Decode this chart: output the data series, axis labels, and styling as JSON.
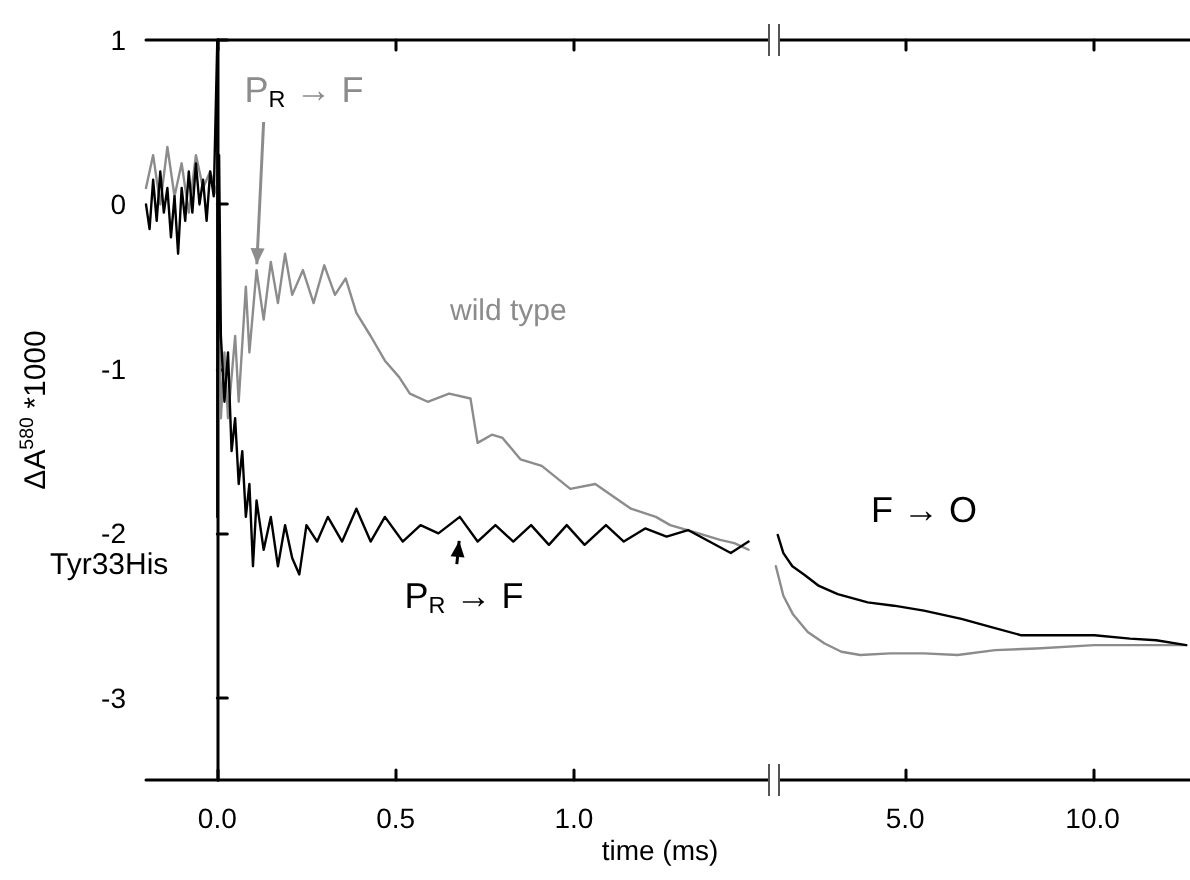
{
  "chart_data": [
    {
      "type": "line",
      "xlabel": "time (ms)",
      "ylabel": "ΔA$^{580}$ *1000",
      "xlim": [
        -0.2,
        1.55
      ],
      "xticks": [
        {
          "value": 0,
          "label": "0.0"
        },
        {
          "value": 0.5,
          "label": "0.5"
        },
        {
          "value": 1,
          "label": "1.0"
        }
      ],
      "ylim": [
        -3.5,
        1
      ],
      "yticks": [
        -3,
        -2,
        -1,
        0,
        1
      ],
      "series": [
        {
          "name": "wild type",
          "color": "#8c8c8c",
          "x": [
            -0.2,
            -0.18,
            -0.16,
            -0.14,
            -0.12,
            -0.1,
            -0.08,
            -0.06,
            -0.04,
            -0.02,
            0,
            0.01,
            0.02,
            0.03,
            0.05,
            0.06,
            0.08,
            0.09,
            0.11,
            0.13,
            0.15,
            0.17,
            0.19,
            0.21,
            0.24,
            0.27,
            0.3,
            0.33,
            0.36,
            0.39,
            0.43,
            0.47,
            0.51,
            0.54,
            0.59,
            0.65,
            0.71,
            0.73,
            0.77,
            0.8,
            0.85,
            0.91,
            0.99,
            1.06,
            1.16,
            1.23,
            1.27,
            1.35,
            1.41,
            1.45,
            1.49
          ],
          "values": [
            0.1,
            0.3,
            0,
            0.35,
            0.05,
            0.25,
            -0.05,
            0.3,
            0.1,
            0.2,
            0.05,
            -1.3,
            -0.9,
            -1.3,
            -0.8,
            -1.2,
            -0.5,
            -0.9,
            -0.4,
            -0.7,
            -0.35,
            -0.6,
            -0.3,
            -0.55,
            -0.4,
            -0.6,
            -0.37,
            -0.55,
            -0.45,
            -0.66,
            -0.8,
            -0.95,
            -1.05,
            -1.15,
            -1.2,
            -1.15,
            -1.18,
            -1.45,
            -1.4,
            -1.42,
            -1.55,
            -1.59,
            -1.73,
            -1.7,
            -1.85,
            -1.9,
            -1.95,
            -2,
            -2.04,
            -2.06,
            -2.1
          ]
        },
        {
          "name": "Tyr33His",
          "color": "#000000",
          "x": [
            -0.2,
            -0.19,
            -0.18,
            -0.17,
            -0.16,
            -0.15,
            -0.14,
            -0.13,
            -0.12,
            -0.11,
            -0.1,
            -0.09,
            -0.08,
            -0.07,
            -0.06,
            -0.05,
            -0.04,
            -0.03,
            -0.02,
            -0.01,
            0,
            0,
            0.005,
            0.01,
            0.02,
            0.03,
            0.04,
            0.05,
            0.06,
            0.07,
            0.08,
            0.09,
            0.1,
            0.11,
            0.13,
            0.15,
            0.17,
            0.19,
            0.21,
            0.23,
            0.25,
            0.28,
            0.31,
            0.35,
            0.39,
            0.43,
            0.47,
            0.52,
            0.57,
            0.62,
            0.68,
            0.73,
            0.78,
            0.83,
            0.88,
            0.93,
            0.98,
            1.03,
            1.09,
            1.14,
            1.2,
            1.26,
            1.32,
            1.38,
            1.44,
            1.49
          ],
          "values": [
            0,
            -0.15,
            0.15,
            -0.1,
            0.2,
            -0.05,
            0.1,
            -0.2,
            0.05,
            -0.3,
            0.1,
            -0.1,
            0.2,
            -0.05,
            0.25,
            0,
            0.15,
            -0.1,
            0.2,
            0.05,
            1,
            -1.9,
            0.3,
            -0.8,
            -1.2,
            -0.9,
            -1.5,
            -1.3,
            -1.7,
            -1.5,
            -1.9,
            -1.7,
            -2.2,
            -1.8,
            -2.1,
            -1.9,
            -2.2,
            -1.95,
            -2.15,
            -2.25,
            -1.95,
            -2.05,
            -1.9,
            -2.05,
            -1.85,
            -2.05,
            -1.9,
            -2.05,
            -1.95,
            -2,
            -1.9,
            -2.05,
            -1.95,
            -2.05,
            -1.95,
            -2.07,
            -1.95,
            -2.07,
            -1.95,
            -2.05,
            -1.97,
            -2.02,
            -1.98,
            -2.05,
            -2.12,
            -2.05
          ]
        }
      ],
      "annotations": [
        {
          "text": "P$_{R}$ → F",
          "x": 0.11,
          "y": -0.4
        },
        {
          "text": "P$_{R}$ → F",
          "x": 0.68,
          "y": -2.01
        }
      ]
    },
    {
      "type": "line",
      "xlim": [
        1.5,
        12.6
      ],
      "xticks": [
        {
          "value": 5,
          "label": "5.0"
        },
        {
          "value": 10,
          "label": "10.0"
        }
      ],
      "ylim": [
        -3.5,
        1
      ],
      "tick_labels": "x",
      "series": [
        {
          "color": "#8c8c8c",
          "x": [
            1.55,
            1.75,
            2,
            2.4,
            2.85,
            3.3,
            3.8,
            4.6,
            5.5,
            6.4,
            7.4,
            8.5,
            10.05,
            11.2,
            12.5
          ],
          "values": [
            -2.2,
            -2.38,
            -2.49,
            -2.6,
            -2.67,
            -2.72,
            -2.74,
            -2.73,
            -2.73,
            -2.74,
            -2.71,
            -2.7,
            -2.68,
            -2.68,
            -2.68
          ]
        },
        {
          "color": "#000000",
          "x": [
            1.6,
            1.75,
            1.99,
            2.3,
            2.7,
            3.2,
            4,
            4.7,
            5.5,
            6.5,
            7.3,
            8.1,
            9,
            10.05,
            11,
            11.7,
            12.5
          ],
          "values": [
            -2.01,
            -2.12,
            -2.2,
            -2.25,
            -2.32,
            -2.37,
            -2.42,
            -2.44,
            -2.47,
            -2.52,
            -2.57,
            -2.62,
            -2.62,
            -2.62,
            -2.64,
            -2.65,
            -2.68
          ]
        }
      ],
      "annotations": [
        "F → O"
      ]
    }
  ]
}
